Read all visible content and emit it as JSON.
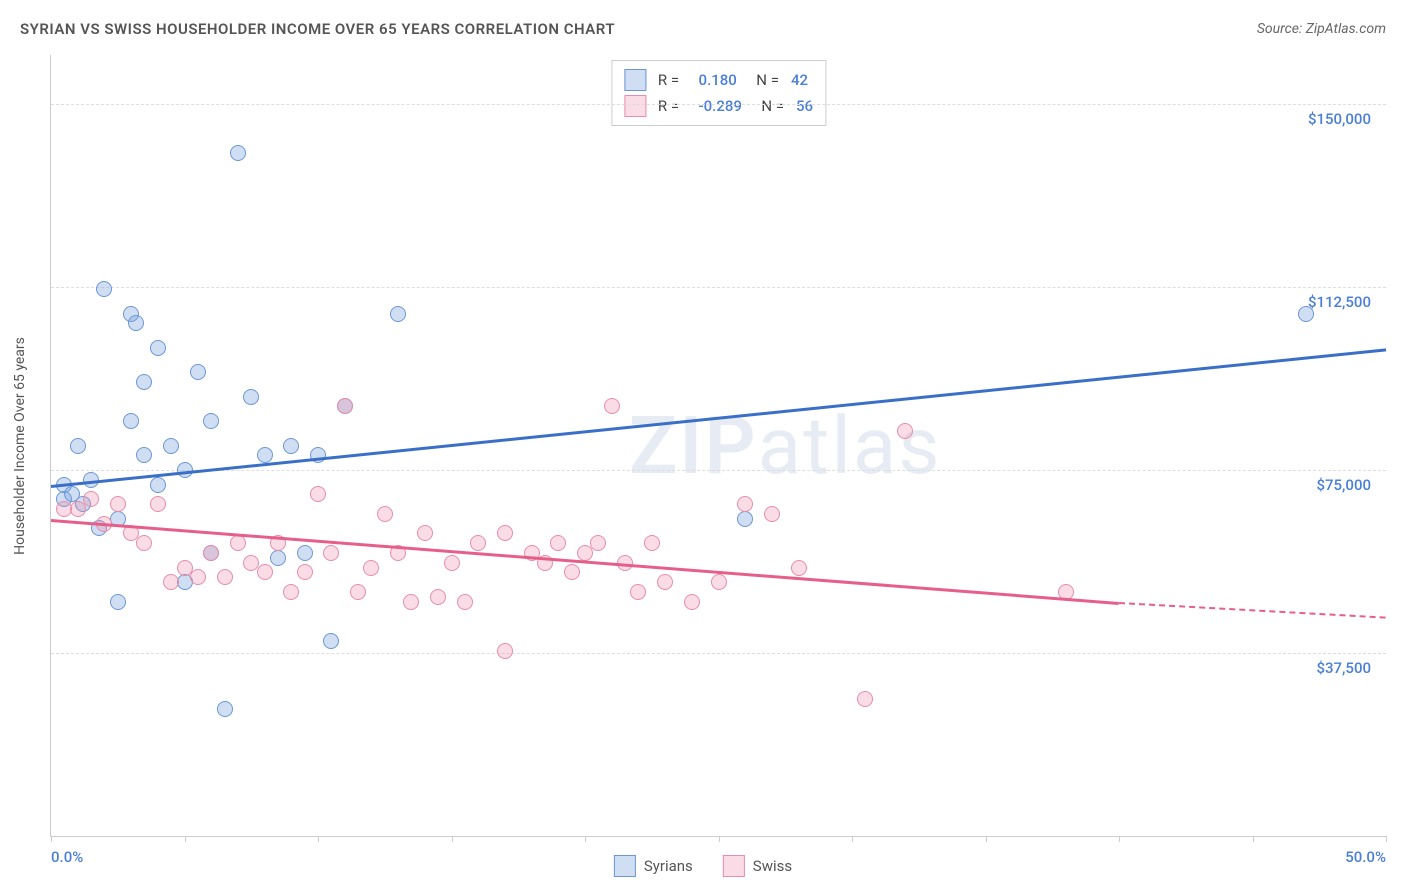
{
  "title": "SYRIAN VS SWISS HOUSEHOLDER INCOME OVER 65 YEARS CORRELATION CHART",
  "source": "Source: ZipAtlas.com",
  "y_axis_label": "Householder Income Over 65 years",
  "watermark": "ZIPatlas",
  "chart": {
    "type": "scatter",
    "xlim": [
      0,
      50
    ],
    "ylim": [
      0,
      160000
    ],
    "x_ticks": [
      0,
      5,
      10,
      15,
      20,
      25,
      30,
      35,
      40,
      45,
      50
    ],
    "x_tick_labels": {
      "0": "0.0%",
      "50": "50.0%"
    },
    "y_gridlines": [
      37500,
      75000,
      112500,
      150000
    ],
    "y_tick_labels": [
      "$37,500",
      "$75,000",
      "$112,500",
      "$150,000"
    ],
    "background_color": "#ffffff",
    "grid_color": "#dddddd",
    "axis_color": "#cccccc",
    "label_color": "#4a7fd8",
    "series": [
      {
        "name": "Syrians",
        "color_fill": "rgba(120,160,220,0.35)",
        "color_stroke": "#6b97d4",
        "trend_color": "#3a6fc8",
        "R": "0.180",
        "N": "42",
        "marker_size": 16,
        "trend": {
          "x1": 0,
          "y1": 72000,
          "x2": 50,
          "y2": 100000
        },
        "points": [
          [
            0.5,
            72000
          ],
          [
            0.5,
            69000
          ],
          [
            0.8,
            70000
          ],
          [
            1.0,
            80000
          ],
          [
            1.2,
            68000
          ],
          [
            1.5,
            73000
          ],
          [
            1.8,
            63000
          ],
          [
            2.0,
            112000
          ],
          [
            2.5,
            65000
          ],
          [
            2.5,
            48000
          ],
          [
            3.0,
            85000
          ],
          [
            3.0,
            107000
          ],
          [
            3.2,
            105000
          ],
          [
            3.5,
            93000
          ],
          [
            3.5,
            78000
          ],
          [
            4.0,
            72000
          ],
          [
            4.0,
            100000
          ],
          [
            4.5,
            80000
          ],
          [
            5.0,
            52000
          ],
          [
            5.0,
            75000
          ],
          [
            5.5,
            95000
          ],
          [
            6.0,
            85000
          ],
          [
            6.0,
            58000
          ],
          [
            6.5,
            26000
          ],
          [
            7.0,
            140000
          ],
          [
            7.5,
            90000
          ],
          [
            8.0,
            78000
          ],
          [
            8.5,
            57000
          ],
          [
            9.0,
            80000
          ],
          [
            9.5,
            58000
          ],
          [
            10.0,
            78000
          ],
          [
            10.5,
            40000
          ],
          [
            11.0,
            88000
          ],
          [
            13.0,
            107000
          ],
          [
            26.0,
            65000
          ],
          [
            47.0,
            107000
          ]
        ]
      },
      {
        "name": "Swiss",
        "color_fill": "rgba(235,140,170,0.3)",
        "color_stroke": "#e88daa",
        "trend_color": "#e65f8b",
        "R": "-0.289",
        "N": "56",
        "marker_size": 16,
        "trend": {
          "x1": 0,
          "y1": 65000,
          "x2": 40,
          "y2": 48000,
          "dash_to": 50,
          "dash_y": 45000
        },
        "points": [
          [
            0.5,
            67000
          ],
          [
            1.0,
            67000
          ],
          [
            1.5,
            69000
          ],
          [
            2.0,
            64000
          ],
          [
            2.5,
            68000
          ],
          [
            3.0,
            62000
          ],
          [
            3.5,
            60000
          ],
          [
            4.0,
            68000
          ],
          [
            4.5,
            52000
          ],
          [
            5.0,
            55000
          ],
          [
            5.5,
            53000
          ],
          [
            6.0,
            58000
          ],
          [
            6.5,
            53000
          ],
          [
            7.0,
            60000
          ],
          [
            7.5,
            56000
          ],
          [
            8.0,
            54000
          ],
          [
            8.5,
            60000
          ],
          [
            9.0,
            50000
          ],
          [
            9.5,
            54000
          ],
          [
            10.0,
            70000
          ],
          [
            10.5,
            58000
          ],
          [
            11.0,
            88000
          ],
          [
            11.5,
            50000
          ],
          [
            12.0,
            55000
          ],
          [
            12.5,
            66000
          ],
          [
            13.0,
            58000
          ],
          [
            13.5,
            48000
          ],
          [
            14.0,
            62000
          ],
          [
            14.5,
            49000
          ],
          [
            15.0,
            56000
          ],
          [
            15.5,
            48000
          ],
          [
            16.0,
            60000
          ],
          [
            17.0,
            62000
          ],
          [
            17.0,
            38000
          ],
          [
            18.0,
            58000
          ],
          [
            18.5,
            56000
          ],
          [
            19.0,
            60000
          ],
          [
            19.5,
            54000
          ],
          [
            20.0,
            58000
          ],
          [
            20.5,
            60000
          ],
          [
            21.0,
            88000
          ],
          [
            21.5,
            56000
          ],
          [
            22.0,
            50000
          ],
          [
            22.5,
            60000
          ],
          [
            23.0,
            52000
          ],
          [
            24.0,
            48000
          ],
          [
            25.0,
            52000
          ],
          [
            26.0,
            68000
          ],
          [
            27.0,
            66000
          ],
          [
            28.0,
            55000
          ],
          [
            30.5,
            28000
          ],
          [
            32.0,
            83000
          ],
          [
            38.0,
            50000
          ]
        ]
      }
    ]
  },
  "bottom_legend": [
    {
      "label": "Syrians",
      "class": "blue"
    },
    {
      "label": "Swiss",
      "class": "pink"
    }
  ]
}
